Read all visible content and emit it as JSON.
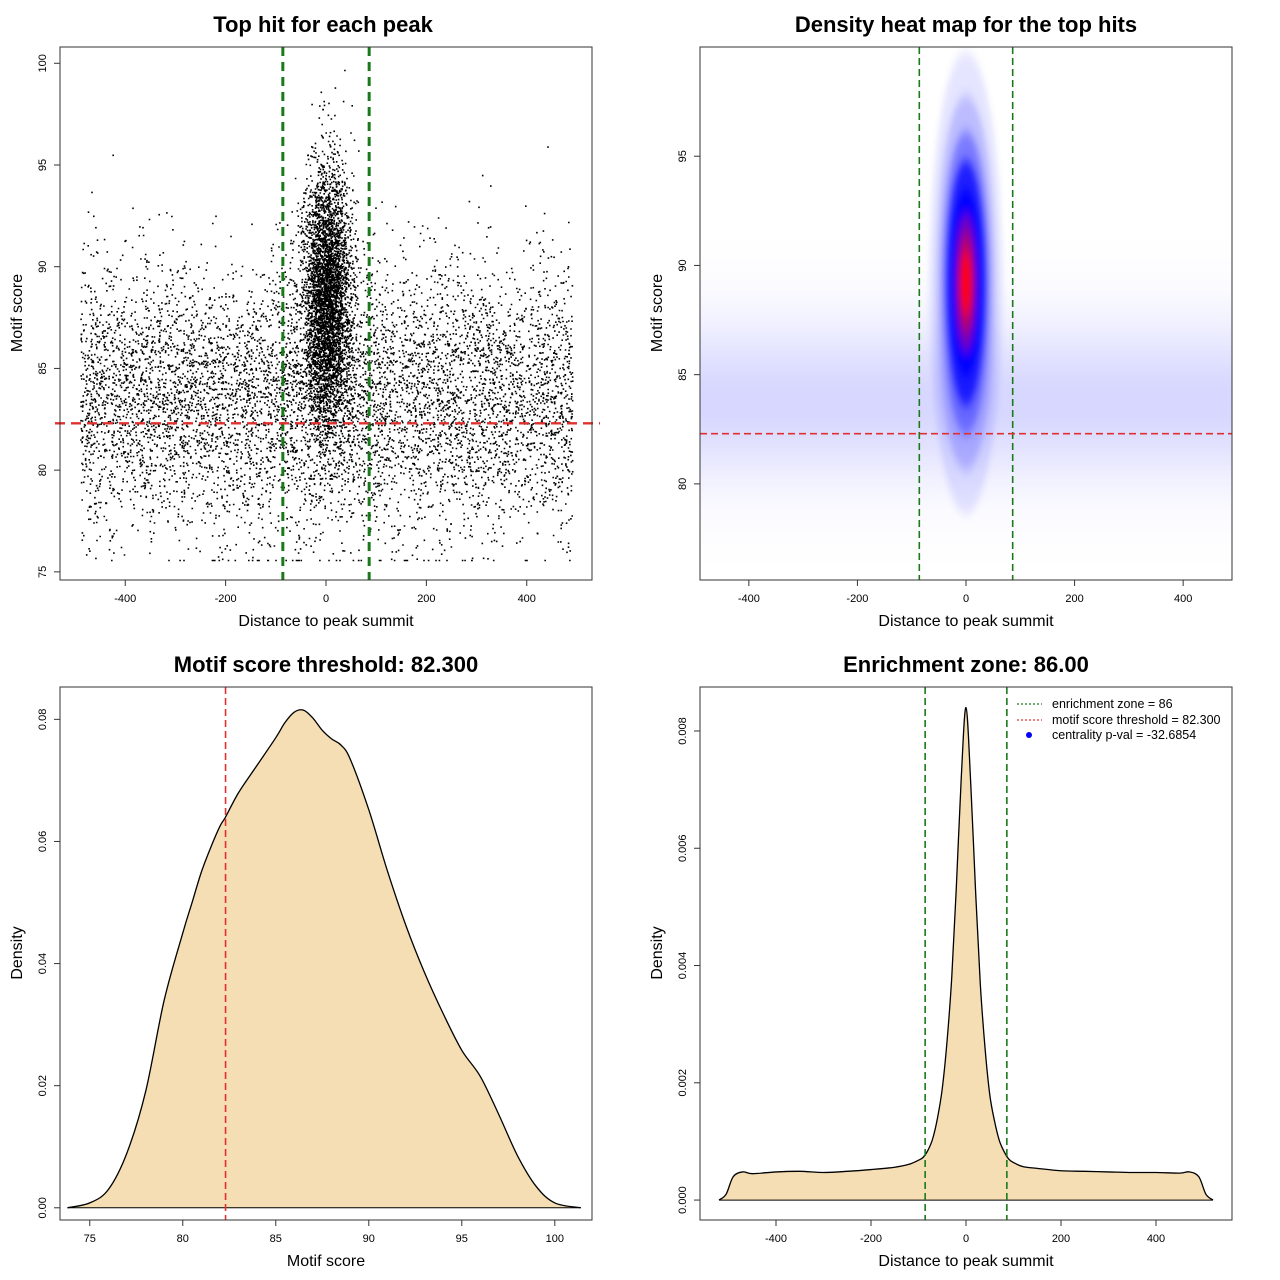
{
  "chart_data": [
    {
      "type": "scatter",
      "title": "Top hit for each peak",
      "xlabel": "Distance to peak summit",
      "ylabel": "Motif score",
      "xlim": [
        -530,
        530
      ],
      "ylim": [
        74.6,
        100.8
      ],
      "xticks": [
        -400,
        -200,
        0,
        200,
        400
      ],
      "yticks": [
        75,
        80,
        85,
        90,
        95,
        100
      ],
      "point_color": "#000000",
      "points_summary": {
        "n_background": 7200,
        "background_x_range": [
          -490,
          490
        ],
        "background_score_mean": 83.6,
        "background_score_sd": 3.3,
        "n_central": 4300,
        "central_x_sd": 24,
        "central_score_mean": 88.4,
        "central_score_sd": 3.2,
        "score_min": 75.6,
        "score_max": 99.8
      },
      "threshold_y": 82.3,
      "threshold_color": "#e03030",
      "zone_x": [
        -86,
        86
      ],
      "zone_color": "#1a7a1a"
    },
    {
      "type": "heatmap",
      "title": "Density heat map for the top hits",
      "xlabel": "Distance to peak summit",
      "ylabel": "Motif score",
      "xlim": [
        -490,
        490
      ],
      "ylim": [
        75.6,
        100
      ],
      "xticks": [
        -400,
        -200,
        0,
        200,
        400
      ],
      "yticks": [
        80,
        85,
        90,
        95
      ],
      "colors": [
        "#ffffff",
        "#0000ff",
        "#ff0000"
      ],
      "central_peak": {
        "x": 0,
        "x_sd": 21,
        "y": 89.2,
        "y_sd": 3.3
      },
      "background_score_mean": 83.8,
      "background_score_sd": 2.4,
      "threshold_y": 82.3,
      "threshold_color": "#e03030",
      "zone_x": [
        -86,
        86
      ],
      "zone_color": "#1a7a1a"
    },
    {
      "type": "area",
      "title": "Motif score threshold: 82.300",
      "xlabel": "Motif score",
      "ylabel": "Density",
      "xlim": [
        73.4,
        102
      ],
      "ylim": [
        -0.002,
        0.0853
      ],
      "xticks": [
        75,
        80,
        85,
        90,
        95,
        100
      ],
      "yticks": [
        0.0,
        0.02,
        0.04,
        0.06,
        0.08
      ],
      "ytick_labels": [
        "0.00",
        "0.02",
        "0.04",
        "0.06",
        "0.08"
      ],
      "fill_color": "#f5deb3",
      "x": [
        73.8,
        75,
        76,
        77,
        78,
        79,
        80,
        80.5,
        81,
        81.5,
        82,
        82.3,
        83,
        84,
        85,
        85.5,
        86,
        86.5,
        87,
        87.5,
        88,
        88.5,
        89,
        90,
        91,
        92,
        93,
        94,
        95,
        96,
        97,
        98,
        99,
        100,
        101.4
      ],
      "y": [
        0.0,
        0.0008,
        0.003,
        0.009,
        0.019,
        0.034,
        0.045,
        0.05,
        0.055,
        0.059,
        0.0625,
        0.064,
        0.068,
        0.0725,
        0.077,
        0.0795,
        0.0812,
        0.0815,
        0.0802,
        0.0782,
        0.0768,
        0.0758,
        0.0735,
        0.0652,
        0.0552,
        0.0462,
        0.0385,
        0.0318,
        0.0258,
        0.0215,
        0.0152,
        0.0085,
        0.0035,
        0.0008,
        0.0
      ],
      "threshold_x": 82.3,
      "threshold_color": "#e03030"
    },
    {
      "type": "area",
      "title": "Enrichment zone: 86.00",
      "xlabel": "Distance to peak summit",
      "ylabel": "Density",
      "xlim": [
        -560,
        560
      ],
      "ylim": [
        -0.00034,
        0.00875
      ],
      "xticks": [
        -400,
        -200,
        0,
        200,
        400
      ],
      "yticks": [
        0.0,
        0.002,
        0.004,
        0.006,
        0.008
      ],
      "ytick_labels": [
        "0.000",
        "0.002",
        "0.004",
        "0.006",
        "0.008"
      ],
      "fill_color": "#f5deb3",
      "x": [
        -520,
        -505,
        -490,
        -470,
        -450,
        -400,
        -350,
        -300,
        -250,
        -200,
        -150,
        -120,
        -100,
        -90,
        -80,
        -70,
        -60,
        -50,
        -40,
        -30,
        -20,
        -10,
        0,
        10,
        20,
        30,
        40,
        50,
        60,
        70,
        80,
        90,
        100,
        120,
        150,
        200,
        250,
        300,
        350,
        400,
        450,
        470,
        490,
        505,
        520
      ],
      "y": [
        0.0,
        0.0001,
        0.0004,
        0.00048,
        0.00045,
        0.00048,
        0.00049,
        0.00047,
        0.00049,
        0.00052,
        0.00056,
        0.00061,
        0.00068,
        0.00073,
        0.00085,
        0.00105,
        0.0014,
        0.0019,
        0.0027,
        0.0038,
        0.0054,
        0.0072,
        0.0084,
        0.0071,
        0.0053,
        0.0037,
        0.0026,
        0.0018,
        0.00135,
        0.00102,
        0.00083,
        0.0007,
        0.00064,
        0.00057,
        0.00054,
        0.0005,
        0.00049,
        0.00048,
        0.00047,
        0.00047,
        0.00046,
        0.00048,
        0.0004,
        0.0001,
        0.0
      ],
      "zone_x": [
        -86,
        86
      ],
      "zone_color": "#1a7a1a",
      "legend": {
        "position": "top-right",
        "entries": [
          {
            "label": "enrichment zone = 86",
            "color": "#1a7a1a",
            "style": "dotted-line"
          },
          {
            "label": "motif score threshold = 82.300",
            "color": "#e03030",
            "style": "dotted-line"
          },
          {
            "label": "centrality p-val = -32.6854",
            "color": "#0000ff",
            "style": "point"
          }
        ]
      }
    }
  ]
}
